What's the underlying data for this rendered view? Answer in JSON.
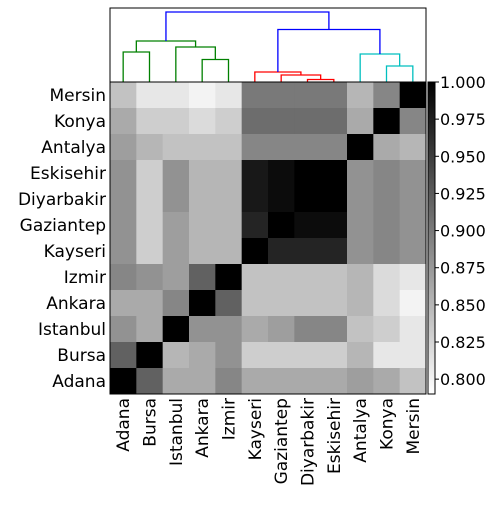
{
  "chart_data": {
    "type": "heatmap",
    "title": "",
    "xlabel": "",
    "ylabel": "",
    "y_labels_top_to_bottom": [
      "Mersin",
      "Konya",
      "Antalya",
      "Eskisehir",
      "Diyarbakir",
      "Gaziantep",
      "Kayseri",
      "Izmir",
      "Ankara",
      "Istanbul",
      "Bursa",
      "Adana"
    ],
    "x_labels_left_to_right": [
      "Adana",
      "Bursa",
      "Istanbul",
      "Ankara",
      "Izmir",
      "Kayseri",
      "Gaziantep",
      "Diyarbakir",
      "Eskisehir",
      "Antalya",
      "Konya",
      "Mersin"
    ],
    "matrix_rows_top_to_bottom": [
      [
        0.84,
        0.81,
        0.81,
        0.8,
        0.81,
        0.9,
        0.9,
        0.9,
        0.9,
        0.85,
        0.89,
        1.0
      ],
      [
        0.86,
        0.83,
        0.83,
        0.82,
        0.83,
        0.91,
        0.91,
        0.91,
        0.91,
        0.86,
        1.0,
        0.89
      ],
      [
        0.87,
        0.85,
        0.84,
        0.84,
        0.84,
        0.89,
        0.89,
        0.89,
        0.89,
        1.0,
        0.86,
        0.85
      ],
      [
        0.88,
        0.83,
        0.88,
        0.85,
        0.85,
        0.98,
        0.99,
        1.0,
        1.0,
        0.88,
        0.89,
        0.88
      ],
      [
        0.88,
        0.83,
        0.88,
        0.85,
        0.85,
        0.98,
        0.99,
        1.0,
        1.0,
        0.88,
        0.89,
        0.88
      ],
      [
        0.88,
        0.83,
        0.87,
        0.85,
        0.85,
        0.97,
        1.0,
        0.99,
        0.99,
        0.88,
        0.89,
        0.88
      ],
      [
        0.88,
        0.83,
        0.87,
        0.85,
        0.85,
        1.0,
        0.97,
        0.97,
        0.97,
        0.88,
        0.89,
        0.88
      ],
      [
        0.89,
        0.88,
        0.87,
        0.92,
        1.0,
        0.84,
        0.84,
        0.84,
        0.84,
        0.85,
        0.82,
        0.81
      ],
      [
        0.86,
        0.86,
        0.89,
        1.0,
        0.92,
        0.84,
        0.84,
        0.84,
        0.84,
        0.85,
        0.82,
        0.8
      ],
      [
        0.88,
        0.86,
        1.0,
        0.88,
        0.88,
        0.86,
        0.87,
        0.89,
        0.89,
        0.84,
        0.83,
        0.81
      ],
      [
        0.92,
        1.0,
        0.85,
        0.86,
        0.88,
        0.83,
        0.83,
        0.83,
        0.83,
        0.85,
        0.81,
        0.81
      ],
      [
        1.0,
        0.92,
        0.86,
        0.86,
        0.89,
        0.86,
        0.86,
        0.86,
        0.86,
        0.87,
        0.86,
        0.84
      ]
    ],
    "colorbar": {
      "cmap": "gray_r",
      "range": [
        0.79,
        1.0
      ],
      "ticks": [
        "0.800",
        "0.825",
        "0.850",
        "0.875",
        "0.900",
        "0.925",
        "0.950",
        "0.975",
        "1.000"
      ]
    },
    "dendrogram": {
      "leaf_order": [
        "Adana",
        "Bursa",
        "Istanbul",
        "Ankara",
        "Izmir",
        "Kayseri",
        "Gaziantep",
        "Diyarbakir",
        "Eskisehir",
        "Antalya",
        "Konya",
        "Mersin"
      ],
      "cluster_colors": {
        "green": "#008000",
        "red": "#ff0000",
        "cyan": "#00bfbf",
        "blue": "#0000ff"
      },
      "links": [
        {
          "a": 7,
          "b": 8,
          "h": 0.05,
          "color": "red"
        },
        {
          "a": 6,
          "b": "7-8",
          "h": 0.14,
          "color": "red"
        },
        {
          "a": 5,
          "b": "6-8",
          "h": 0.2,
          "color": "red"
        },
        {
          "a": 10,
          "b": 11,
          "h": 0.32,
          "color": "cyan"
        },
        {
          "a": 9,
          "b": "10-11",
          "h": 0.56,
          "color": "cyan"
        },
        {
          "a": 3,
          "b": 4,
          "h": 0.45,
          "color": "green"
        },
        {
          "a": 0,
          "b": 1,
          "h": 0.6,
          "color": "green"
        },
        {
          "a": 2,
          "b": "3-4",
          "h": 0.7,
          "color": "green"
        },
        {
          "a": "0-1",
          "b": "2-4",
          "h": 0.82,
          "color": "green"
        },
        {
          "a": "5-8",
          "b": "9-11",
          "h": 1.05,
          "color": "blue"
        },
        {
          "a": "0-4",
          "b": "5-11",
          "h": 1.4,
          "color": "blue"
        }
      ]
    }
  }
}
